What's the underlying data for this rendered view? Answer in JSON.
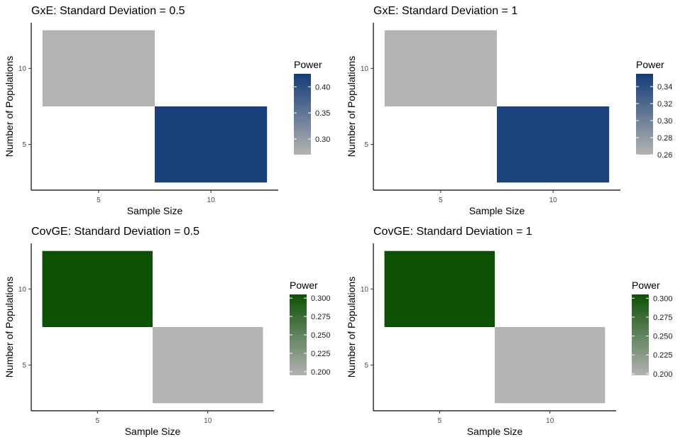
{
  "chart_data": [
    {
      "type": "heatmap",
      "title": "GxE: Standard Deviation = 0.5",
      "xlabel": "Sample Size",
      "ylabel": "Number of Populations",
      "x_categories": [
        "5",
        "10"
      ],
      "y_categories": [
        "5",
        "10"
      ],
      "cells": [
        {
          "x": "5",
          "y": "10",
          "value": 0.27
        },
        {
          "x": "10",
          "y": "5",
          "value": 0.42
        }
      ],
      "legend": {
        "title": "Power",
        "ticks": [
          "0.30",
          "0.35",
          "0.40"
        ],
        "range": [
          0.27,
          0.425
        ],
        "low_color": "#b3b3b3",
        "high_color": "#133c78"
      }
    },
    {
      "type": "heatmap",
      "title": "GxE: Standard Deviation = 1",
      "xlabel": "Sample Size",
      "ylabel": "Number of Populations",
      "x_categories": [
        "5",
        "10"
      ],
      "y_categories": [
        "5",
        "10"
      ],
      "cells": [
        {
          "x": "5",
          "y": "10",
          "value": 0.26
        },
        {
          "x": "10",
          "y": "5",
          "value": 0.35
        }
      ],
      "legend": {
        "title": "Power",
        "ticks": [
          "0.26",
          "0.28",
          "0.30",
          "0.32",
          "0.34"
        ],
        "range": [
          0.26,
          0.355
        ],
        "low_color": "#b3b3b3",
        "high_color": "#133c78"
      }
    },
    {
      "type": "heatmap",
      "title": "CovGE: Standard Deviation = 0.5",
      "xlabel": "Sample Size",
      "ylabel": "Number of Populations",
      "x_categories": [
        "5",
        "10"
      ],
      "y_categories": [
        "5",
        "10"
      ],
      "cells": [
        {
          "x": "5",
          "y": "10",
          "value": 0.305
        },
        {
          "x": "10",
          "y": "5",
          "value": 0.195
        }
      ],
      "legend": {
        "title": "Power",
        "ticks": [
          "0.200",
          "0.225",
          "0.250",
          "0.275",
          "0.300"
        ],
        "range": [
          0.195,
          0.305
        ],
        "low_color": "#b3b3b3",
        "high_color": "#0d5204"
      }
    },
    {
      "type": "heatmap",
      "title": "CovGE: Standard Deviation = 1",
      "xlabel": "Sample Size",
      "ylabel": "Number of Populations",
      "x_categories": [
        "5",
        "10"
      ],
      "y_categories": [
        "5",
        "10"
      ],
      "cells": [
        {
          "x": "5",
          "y": "10",
          "value": 0.305
        },
        {
          "x": "10",
          "y": "5",
          "value": 0.198
        }
      ],
      "legend": {
        "title": "Power",
        "ticks": [
          "0.200",
          "0.225",
          "0.250",
          "0.275",
          "0.300"
        ],
        "range": [
          0.198,
          0.305
        ],
        "low_color": "#b3b3b3",
        "high_color": "#0d5204"
      }
    }
  ]
}
